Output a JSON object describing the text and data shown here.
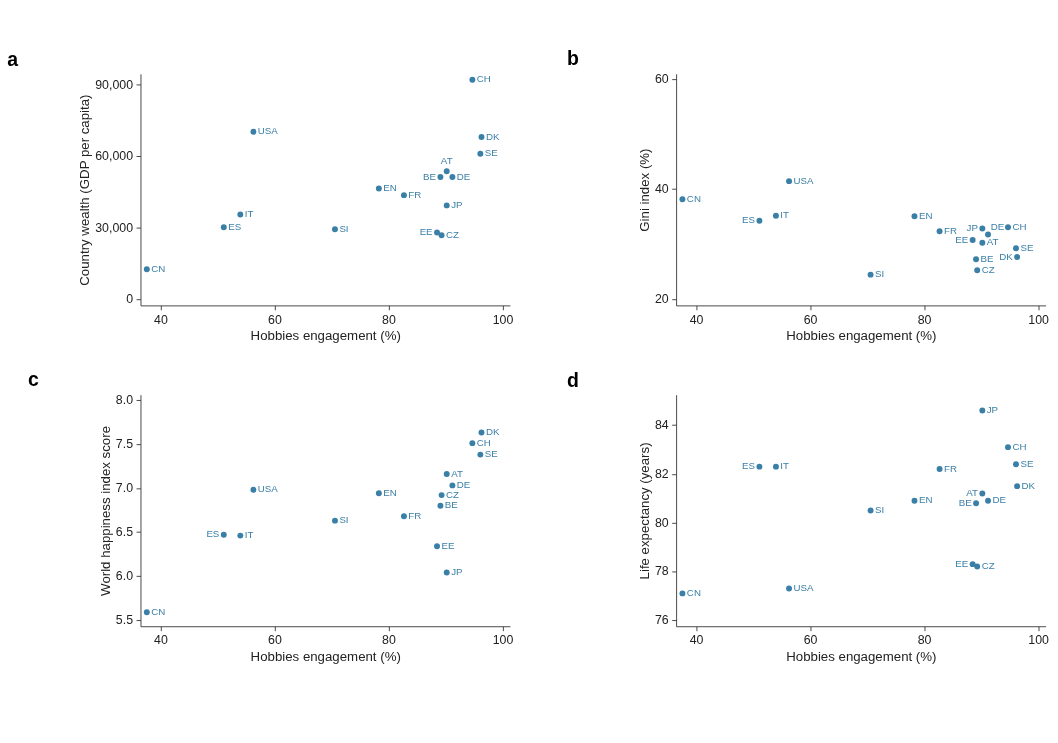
{
  "chart_data": [
    {
      "type": "scatter",
      "title": "a",
      "xlabel": "Hobbies engagement (%)",
      "ylabel": "Country wealth (GDP per capita)",
      "xlim": [
        36.5,
        101.3
      ],
      "xticks": [
        40,
        60,
        80,
        100
      ],
      "ylim": [
        -2700,
        94500
      ],
      "yticks": [
        0,
        {
          "value": 30000,
          "label": "30,000"
        },
        {
          "value": 60000,
          "label": "60,000"
        },
        {
          "value": 90000,
          "label": "90,000"
        }
      ],
      "grid": false,
      "marker": "circle",
      "series": [
        {
          "color": "#3a7fa6",
          "x": [
            37.6,
            51.1,
            54.0,
            56.3,
            70.6,
            78.3,
            82.7,
            88.5,
            89.1,
            89.3,
            90.2,
            90.2,
            91.2,
            94.7,
            96.1,
            96.3
          ],
          "values": [
            12500,
            30100,
            35500,
            70200,
            29300,
            46400,
            43600,
            27900,
            51200,
            26800,
            53600,
            39300,
            51200,
            92000,
            61000,
            68000
          ]
        }
      ],
      "annotations": [
        {
          "text": "CN",
          "x": 37.6,
          "y": 12500
        },
        {
          "text": "ES",
          "x": 51.1,
          "y": 30100
        },
        {
          "text": "IT",
          "x": 54.0,
          "y": 35500
        },
        {
          "text": "USA",
          "x": 56.3,
          "y": 70200
        },
        {
          "text": "SI",
          "x": 70.6,
          "y": 29300
        },
        {
          "text": "EN",
          "x": 78.3,
          "y": 46400
        },
        {
          "text": "FR",
          "x": 82.7,
          "y": 43600
        },
        {
          "text": "EE",
          "x": 88.5,
          "y": 27900
        },
        {
          "text": "BE",
          "x": 89.1,
          "y": 51200
        },
        {
          "text": "CZ",
          "x": 89.3,
          "y": 26800
        },
        {
          "text": "AT",
          "x": 90.2,
          "y": 53600
        },
        {
          "text": "JP",
          "x": 90.2,
          "y": 39300
        },
        {
          "text": "DE",
          "x": 91.2,
          "y": 51200
        },
        {
          "text": "CH",
          "x": 94.7,
          "y": 92000
        },
        {
          "text": "SE",
          "x": 96.1,
          "y": 61000
        },
        {
          "text": "DK",
          "x": 96.3,
          "y": 68000
        }
      ]
    },
    {
      "type": "scatter",
      "title": "b",
      "xlabel": "Hobbies engagement (%)",
      "ylabel": "Gini index (%)",
      "xlim": [
        36.5,
        101.3
      ],
      "xticks": [
        40,
        60,
        80,
        100
      ],
      "ylim": [
        18.8,
        60.9
      ],
      "yticks": [
        20,
        40,
        60
      ],
      "grid": false,
      "marker": "circle",
      "series": [
        {
          "color": "#3a7fa6",
          "x": [
            37.6,
            51.1,
            54.0,
            56.3,
            70.6,
            78.3,
            82.7,
            88.5,
            89.1,
            89.3,
            90.2,
            90.2,
            91.2,
            94.7,
            96.1,
            96.3
          ],
          "values": [
            38.1,
            34.2,
            35.1,
            41.4,
            24.4,
            35.0,
            32.3,
            30.7,
            27.2,
            25.2,
            30.2,
            32.8,
            31.7,
            33.0,
            29.2,
            27.6
          ]
        }
      ],
      "annotations": [
        {
          "text": "CN",
          "x": 37.6,
          "y": 38.1
        },
        {
          "text": "ES",
          "x": 51.1,
          "y": 34.2
        },
        {
          "text": "IT",
          "x": 54.0,
          "y": 35.1
        },
        {
          "text": "USA",
          "x": 56.3,
          "y": 41.4
        },
        {
          "text": "SI",
          "x": 70.6,
          "y": 24.4
        },
        {
          "text": "EN",
          "x": 78.3,
          "y": 35.0
        },
        {
          "text": "FR",
          "x": 82.7,
          "y": 32.3
        },
        {
          "text": "EE",
          "x": 88.5,
          "y": 30.7
        },
        {
          "text": "BE",
          "x": 89.1,
          "y": 27.2
        },
        {
          "text": "CZ",
          "x": 89.3,
          "y": 25.2
        },
        {
          "text": "AT",
          "x": 90.2,
          "y": 30.2
        },
        {
          "text": "JP",
          "x": 90.2,
          "y": 32.8
        },
        {
          "text": "DE",
          "x": 91.2,
          "y": 31.7
        },
        {
          "text": "CH",
          "x": 94.7,
          "y": 33.0
        },
        {
          "text": "SE",
          "x": 96.1,
          "y": 29.2
        },
        {
          "text": "DK",
          "x": 96.3,
          "y": 27.6
        }
      ]
    },
    {
      "type": "scatter",
      "title": "c",
      "xlabel": "Hobbies engagement (%)",
      "ylabel": "World happiness index score",
      "xlim": [
        36.5,
        101.3
      ],
      "xticks": [
        40,
        60,
        80,
        100
      ],
      "ylim": [
        5.43,
        8.06
      ],
      "yticks": [
        {
          "value": 5.5,
          "label": "5.5"
        },
        {
          "value": 6,
          "label": "6.0"
        },
        {
          "value": 6.5,
          "label": "6.5"
        },
        {
          "value": 7,
          "label": "7.0"
        },
        {
          "value": 7.5,
          "label": "7.5"
        },
        {
          "value": 8,
          "label": "8.0"
        }
      ],
      "grid": false,
      "marker": "circle",
      "series": [
        {
          "color": "#3a7fa6",
          "x": [
            37.6,
            51.1,
            54.0,
            56.3,
            70.6,
            78.3,
            82.7,
            88.5,
            89.1,
            89.3,
            90.2,
            90.2,
            91.2,
            94.7,
            96.1,
            96.3
          ],
          "values": [
            5.59,
            6.47,
            6.46,
            6.98,
            6.63,
            6.94,
            6.68,
            6.34,
            6.8,
            6.92,
            7.16,
            6.04,
            7.03,
            7.51,
            7.38,
            7.63
          ]
        }
      ],
      "annotations": [
        {
          "text": "CN",
          "x": 37.6,
          "y": 5.59
        },
        {
          "text": "ES",
          "x": 51.1,
          "y": 6.47
        },
        {
          "text": "IT",
          "x": 54.0,
          "y": 6.46
        },
        {
          "text": "USA",
          "x": 56.3,
          "y": 6.98
        },
        {
          "text": "SI",
          "x": 70.6,
          "y": 6.63
        },
        {
          "text": "EN",
          "x": 78.3,
          "y": 6.94
        },
        {
          "text": "FR",
          "x": 82.7,
          "y": 6.68
        },
        {
          "text": "EE",
          "x": 88.5,
          "y": 6.34
        },
        {
          "text": "BE",
          "x": 89.1,
          "y": 6.8
        },
        {
          "text": "CZ",
          "x": 89.3,
          "y": 6.92
        },
        {
          "text": "AT",
          "x": 90.2,
          "y": 7.16
        },
        {
          "text": "JP",
          "x": 90.2,
          "y": 6.04
        },
        {
          "text": "DE",
          "x": 91.2,
          "y": 7.03
        },
        {
          "text": "CH",
          "x": 94.7,
          "y": 7.51
        },
        {
          "text": "SE",
          "x": 96.1,
          "y": 7.38
        },
        {
          "text": "DK",
          "x": 96.3,
          "y": 7.63
        }
      ]
    },
    {
      "type": "scatter",
      "title": "d",
      "xlabel": "Hobbies engagement (%)",
      "ylabel": "Life expectancy (years)",
      "xlim": [
        36.5,
        101.3
      ],
      "xticks": [
        40,
        60,
        80,
        100
      ],
      "ylim": [
        75.75,
        85.25
      ],
      "yticks": [
        76,
        78,
        80,
        82,
        84
      ],
      "grid": false,
      "marker": "circle",
      "series": [
        {
          "color": "#3a7fa6",
          "x": [
            37.6,
            51.1,
            54.0,
            56.3,
            70.6,
            78.3,
            82.7,
            88.5,
            89.1,
            89.3,
            90.2,
            90.2,
            91.2,
            94.7,
            96.1,
            96.3
          ],
          "values": [
            77.1,
            82.3,
            82.3,
            77.3,
            80.5,
            80.9,
            82.2,
            78.3,
            80.8,
            78.2,
            81.2,
            84.6,
            80.9,
            83.1,
            82.4,
            81.5
          ]
        }
      ],
      "annotations": [
        {
          "text": "CN",
          "x": 37.6,
          "y": 77.1
        },
        {
          "text": "ES",
          "x": 51.1,
          "y": 82.3
        },
        {
          "text": "IT",
          "x": 54.0,
          "y": 82.3
        },
        {
          "text": "USA",
          "x": 56.3,
          "y": 77.3
        },
        {
          "text": "SI",
          "x": 70.6,
          "y": 80.5
        },
        {
          "text": "EN",
          "x": 78.3,
          "y": 80.9
        },
        {
          "text": "FR",
          "x": 82.7,
          "y": 82.2
        },
        {
          "text": "EE",
          "x": 88.5,
          "y": 78.3
        },
        {
          "text": "BE",
          "x": 89.1,
          "y": 80.8
        },
        {
          "text": "CZ",
          "x": 89.3,
          "y": 78.2
        },
        {
          "text": "AT",
          "x": 90.2,
          "y": 81.2
        },
        {
          "text": "JP",
          "x": 90.2,
          "y": 84.6
        },
        {
          "text": "DE",
          "x": 91.2,
          "y": 80.9
        },
        {
          "text": "CH",
          "x": 94.7,
          "y": 83.1
        },
        {
          "text": "SE",
          "x": 96.1,
          "y": 82.4
        },
        {
          "text": "DK",
          "x": 96.3,
          "y": 81.5
        }
      ]
    }
  ]
}
